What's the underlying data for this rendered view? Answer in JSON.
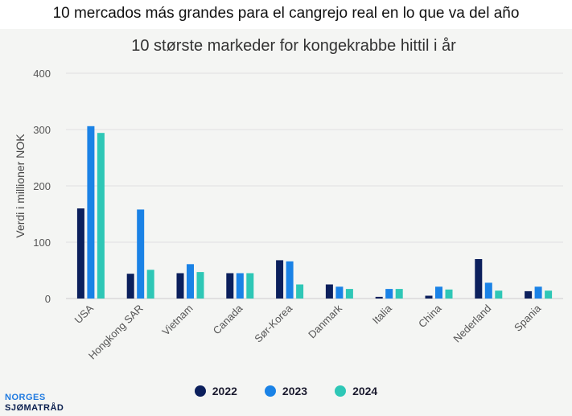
{
  "page": {
    "heading": "10 mercados más grandes para el cangrejo real en lo que va del año"
  },
  "logo": {
    "line1": "NORGES",
    "line2": "SJØMATRÅD"
  },
  "chart_data": {
    "type": "bar",
    "title": "10 største markeder for kongekrabbe hittil i år",
    "ylabel": "Verdi i millioner NOK",
    "xlabel": "",
    "ylim": [
      0,
      400
    ],
    "yticks": [
      0,
      100,
      200,
      300,
      400
    ],
    "grid": true,
    "legend_position": "bottom",
    "categories": [
      "USA",
      "Hongkong SAR",
      "Vietnam",
      "Canada",
      "Sør-Korea",
      "Danmark",
      "Italia",
      "China",
      "Nederland",
      "Spania"
    ],
    "series": [
      {
        "name": "2022",
        "color": "#0b1f5c",
        "values": [
          160,
          44,
          45,
          45,
          68,
          25,
          3,
          5,
          70,
          13
        ]
      },
      {
        "name": "2023",
        "color": "#1a82e6",
        "values": [
          306,
          158,
          61,
          45,
          66,
          21,
          17,
          21,
          28,
          21
        ]
      },
      {
        "name": "2024",
        "color": "#2ec7b6",
        "values": [
          294,
          51,
          47,
          45,
          25,
          17,
          17,
          16,
          14,
          14
        ]
      }
    ]
  }
}
